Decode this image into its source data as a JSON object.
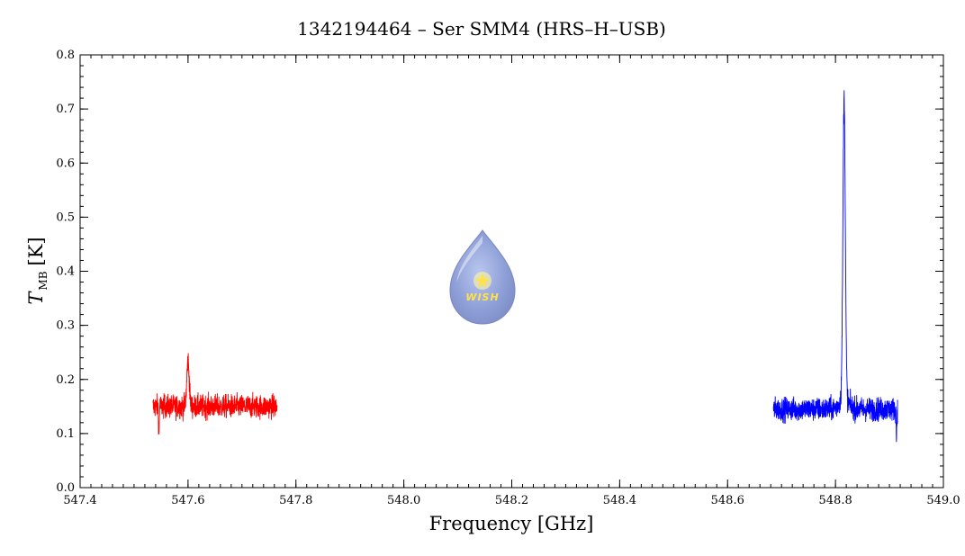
{
  "chart_data": {
    "type": "line",
    "title": "1342194464 – Ser SMM4 (HRS–H–USB)",
    "xlabel": "Frequency [GHz]",
    "ylabel_main": "T",
    "ylabel_sub": "MB",
    "ylabel_unit": "[K]",
    "xlim": [
      547.4,
      549.0
    ],
    "ylim": [
      0.0,
      0.8
    ],
    "x_ticks": [
      547.4,
      547.6,
      547.8,
      548.0,
      548.2,
      548.4,
      548.6,
      548.8,
      549.0
    ],
    "x_tick_labels": [
      "547.4",
      "547.6",
      "547.8",
      "548.0",
      "548.2",
      "548.4",
      "548.6",
      "548.8",
      "549.0"
    ],
    "y_ticks": [
      0.0,
      0.1,
      0.2,
      0.3,
      0.4,
      0.5,
      0.6,
      0.7,
      0.8
    ],
    "y_tick_labels": [
      "0.0",
      "0.1",
      "0.2",
      "0.3",
      "0.4",
      "0.5",
      "0.6",
      "0.7",
      "0.8"
    ],
    "grid": false,
    "series": [
      {
        "color": "#ff0000",
        "x_range": [
          547.535,
          547.765
        ],
        "baseline": 0.15,
        "noise": 0.02,
        "features": [
          {
            "x": 547.6,
            "peak": 0.235
          },
          {
            "x": 547.546,
            "peak": 0.095
          }
        ]
      },
      {
        "color": "#0000ff",
        "x_range": [
          548.685,
          548.915
        ],
        "baseline": 0.145,
        "noise": 0.02,
        "features": [
          {
            "x": 548.816,
            "peak": 0.7
          },
          {
            "x": 548.913,
            "peak": 0.095
          }
        ]
      }
    ],
    "watermark": {
      "text": "WISH",
      "icon": "wish-droplet-logo"
    }
  }
}
